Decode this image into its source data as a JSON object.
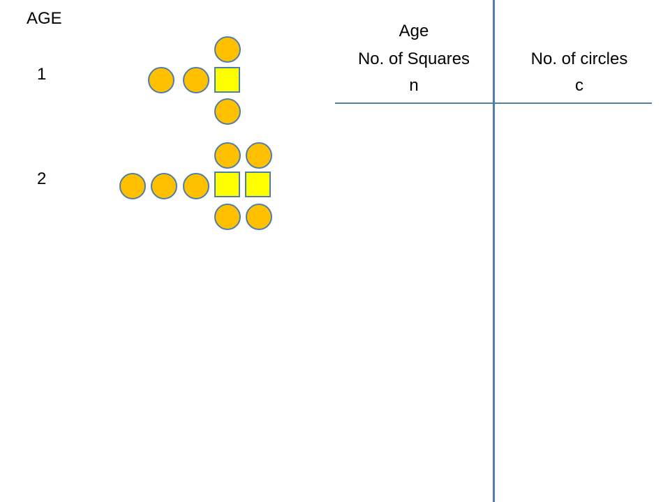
{
  "diagram": {
    "heading": "AGE",
    "ages": [
      "1",
      "2"
    ],
    "patterns": [
      {
        "age": "1",
        "squares": 1,
        "circles": 4
      },
      {
        "age": "2",
        "squares": 2,
        "circles": 7
      }
    ]
  },
  "table": {
    "left_column": {
      "line1": "Age",
      "line2": "No. of Squares",
      "line3": "n"
    },
    "right_column": {
      "line1": "No. of circles",
      "line2": "c"
    }
  },
  "colors": {
    "circle_fill": "#FFC000",
    "circle_border": "#4F7EA8",
    "square_fill": "#FFFF00",
    "square_border": "#4F7EA8",
    "table_lines": "#4F7EA8"
  }
}
